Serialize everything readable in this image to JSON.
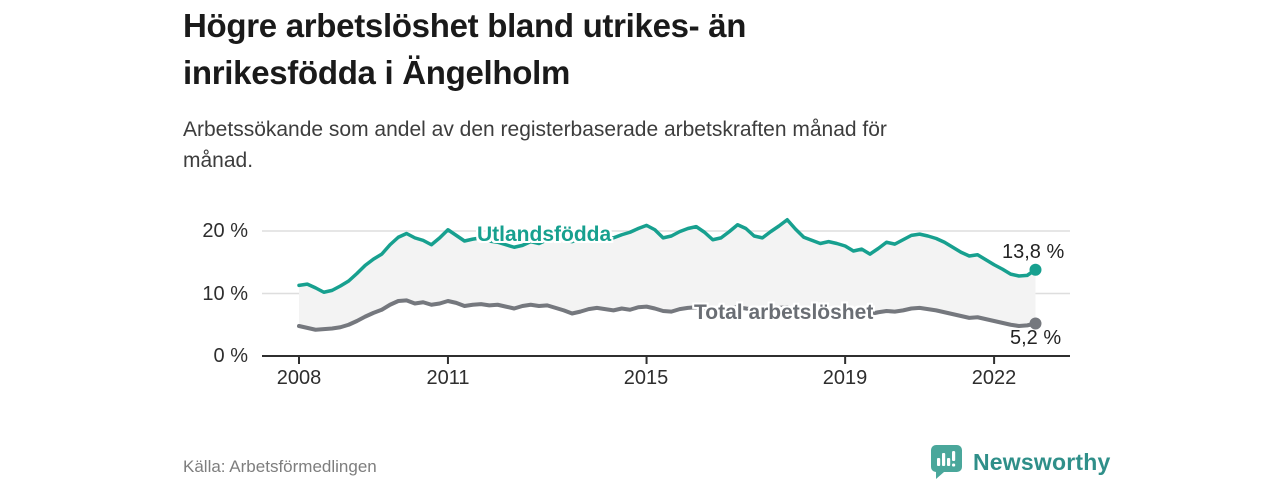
{
  "header": {
    "title_lines": [
      "Högre arbetslöshet bland utrikes- än",
      "inrikesfödda i Ängelholm"
    ],
    "subtitle_lines": [
      "Arbetssökande som andel av den registerbaserade arbetskraften månad för",
      "månad."
    ]
  },
  "footer": {
    "source": "Källa: Arbetsförmedlingen",
    "logo_text": "Newsworthy"
  },
  "colors": {
    "title": "#1a1a1a",
    "subtitle": "#3d3d3d",
    "axis": "#2f2f2f",
    "gridline": "#dedede",
    "band_fill": "#f3f3f3",
    "tick_label": "#2e2e2e",
    "annotation": "#232323",
    "series_utlandsfodda": "#17A08F",
    "series_total": "#75787E",
    "series_total_label": "#6a6e74",
    "logo_icon": "#4AA79B",
    "logo_text": "#2F8F89"
  },
  "chart_data": {
    "type": "line",
    "title": "Högre arbetslöshet bland utrikes- än inrikesfödda i Ängelholm",
    "subtitle": "Arbetssökande som andel av den registerbaserade arbetskraften månad för månad.",
    "x_unit": "decimal_year",
    "x_start": 2008.0,
    "x_step": 0.16667,
    "x_end": 2022.83,
    "ylim": [
      0,
      23
    ],
    "grid": "horizontal",
    "legend": "inline-labels-on-lines",
    "band_between_series": true,
    "yticks": [
      {
        "label": "0 %",
        "value": 0
      },
      {
        "label": "10 %",
        "value": 10
      },
      {
        "label": "20 %",
        "value": 20
      }
    ],
    "xticks": [
      {
        "label": "2008",
        "value": 2008
      },
      {
        "label": "2011",
        "value": 2011
      },
      {
        "label": "2015",
        "value": 2015
      },
      {
        "label": "2019",
        "value": 2019
      },
      {
        "label": "2022",
        "value": 2022
      }
    ],
    "series": [
      {
        "name": "Utlandsfödda",
        "color": "#17A08F",
        "end_label": "13,8 %",
        "end_value": 13.8,
        "values": [
          11.3,
          11.5,
          10.9,
          10.2,
          10.5,
          11.2,
          12.0,
          13.2,
          14.5,
          15.5,
          16.3,
          17.8,
          19.0,
          19.6,
          18.9,
          18.5,
          17.8,
          18.9,
          20.2,
          19.3,
          18.4,
          18.7,
          18.9,
          18.4,
          18.2,
          17.8,
          17.4,
          17.7,
          18.3,
          18.0,
          18.6,
          18.9,
          18.6,
          18.3,
          18.8,
          18.5,
          19.0,
          18.6,
          18.9,
          19.4,
          19.8,
          20.4,
          20.9,
          20.2,
          18.9,
          19.2,
          19.9,
          20.4,
          20.7,
          19.8,
          18.6,
          18.9,
          19.9,
          21.0,
          20.4,
          19.2,
          18.9,
          19.9,
          20.8,
          21.8,
          20.3,
          19.0,
          18.5,
          18.0,
          18.3,
          18.0,
          17.6,
          16.8,
          17.1,
          16.3,
          17.2,
          18.2,
          17.9,
          18.6,
          19.3,
          19.5,
          19.2,
          18.8,
          18.2,
          17.4,
          16.6,
          16.0,
          16.2,
          15.4,
          14.6,
          13.9,
          13.1,
          12.8,
          12.9,
          13.8
        ]
      },
      {
        "name": "Total arbetslöshet",
        "color": "#75787E",
        "end_label": "5,2 %",
        "end_value": 5.2,
        "values": [
          4.8,
          4.5,
          4.2,
          4.3,
          4.4,
          4.6,
          5.0,
          5.6,
          6.3,
          6.9,
          7.4,
          8.2,
          8.8,
          8.9,
          8.4,
          8.6,
          8.2,
          8.4,
          8.8,
          8.5,
          8.0,
          8.2,
          8.3,
          8.1,
          8.2,
          7.9,
          7.6,
          8.0,
          8.2,
          8.0,
          8.1,
          7.7,
          7.3,
          6.8,
          7.1,
          7.5,
          7.7,
          7.5,
          7.3,
          7.6,
          7.4,
          7.8,
          7.9,
          7.6,
          7.2,
          7.1,
          7.5,
          7.7,
          7.8,
          7.5,
          7.3,
          7.5,
          7.7,
          7.8,
          7.6,
          7.4,
          7.3,
          7.5,
          7.7,
          7.8,
          7.5,
          7.2,
          7.0,
          7.1,
          7.3,
          7.2,
          7.0,
          6.8,
          6.9,
          6.7,
          7.0,
          7.2,
          7.1,
          7.3,
          7.6,
          7.7,
          7.5,
          7.3,
          7.0,
          6.7,
          6.4,
          6.1,
          6.2,
          5.9,
          5.6,
          5.3,
          5.0,
          4.8,
          4.9,
          5.2
        ]
      }
    ],
    "source": "Källa: Arbetsförmedlingen"
  }
}
